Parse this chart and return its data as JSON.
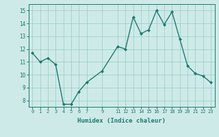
{
  "x": [
    0,
    1,
    2,
    3,
    4,
    5,
    6,
    7,
    9,
    11,
    12,
    13,
    14,
    15,
    16,
    17,
    18,
    19,
    20,
    21,
    22,
    23
  ],
  "y": [
    11.7,
    11.0,
    11.3,
    10.8,
    7.7,
    7.7,
    8.7,
    9.4,
    10.3,
    12.2,
    12.0,
    14.5,
    13.2,
    13.5,
    15.0,
    13.9,
    14.9,
    12.8,
    10.7,
    10.1,
    9.9,
    9.4
  ],
  "xlim": [
    -0.5,
    23.5
  ],
  "ylim": [
    7.5,
    15.5
  ],
  "yticks": [
    8,
    9,
    10,
    11,
    12,
    13,
    14,
    15
  ],
  "xticks": [
    0,
    1,
    2,
    3,
    4,
    5,
    6,
    7,
    9,
    11,
    12,
    13,
    14,
    15,
    16,
    17,
    18,
    19,
    20,
    21,
    22,
    23
  ],
  "xtick_labels": [
    "0",
    "1",
    "2",
    "3",
    "4",
    "5",
    "6",
    "7",
    "9",
    "11",
    "12",
    "13",
    "14",
    "15",
    "16",
    "17",
    "18",
    "19",
    "20",
    "21",
    "22",
    "23"
  ],
  "xlabel": "Humidex (Indice chaleur)",
  "line_color": "#1a7a6e",
  "marker_color": "#1a7a6e",
  "bg_color": "#ceeae8",
  "grid_color": "#9ecfcb",
  "figsize": [
    3.2,
    2.0
  ],
  "dpi": 100
}
